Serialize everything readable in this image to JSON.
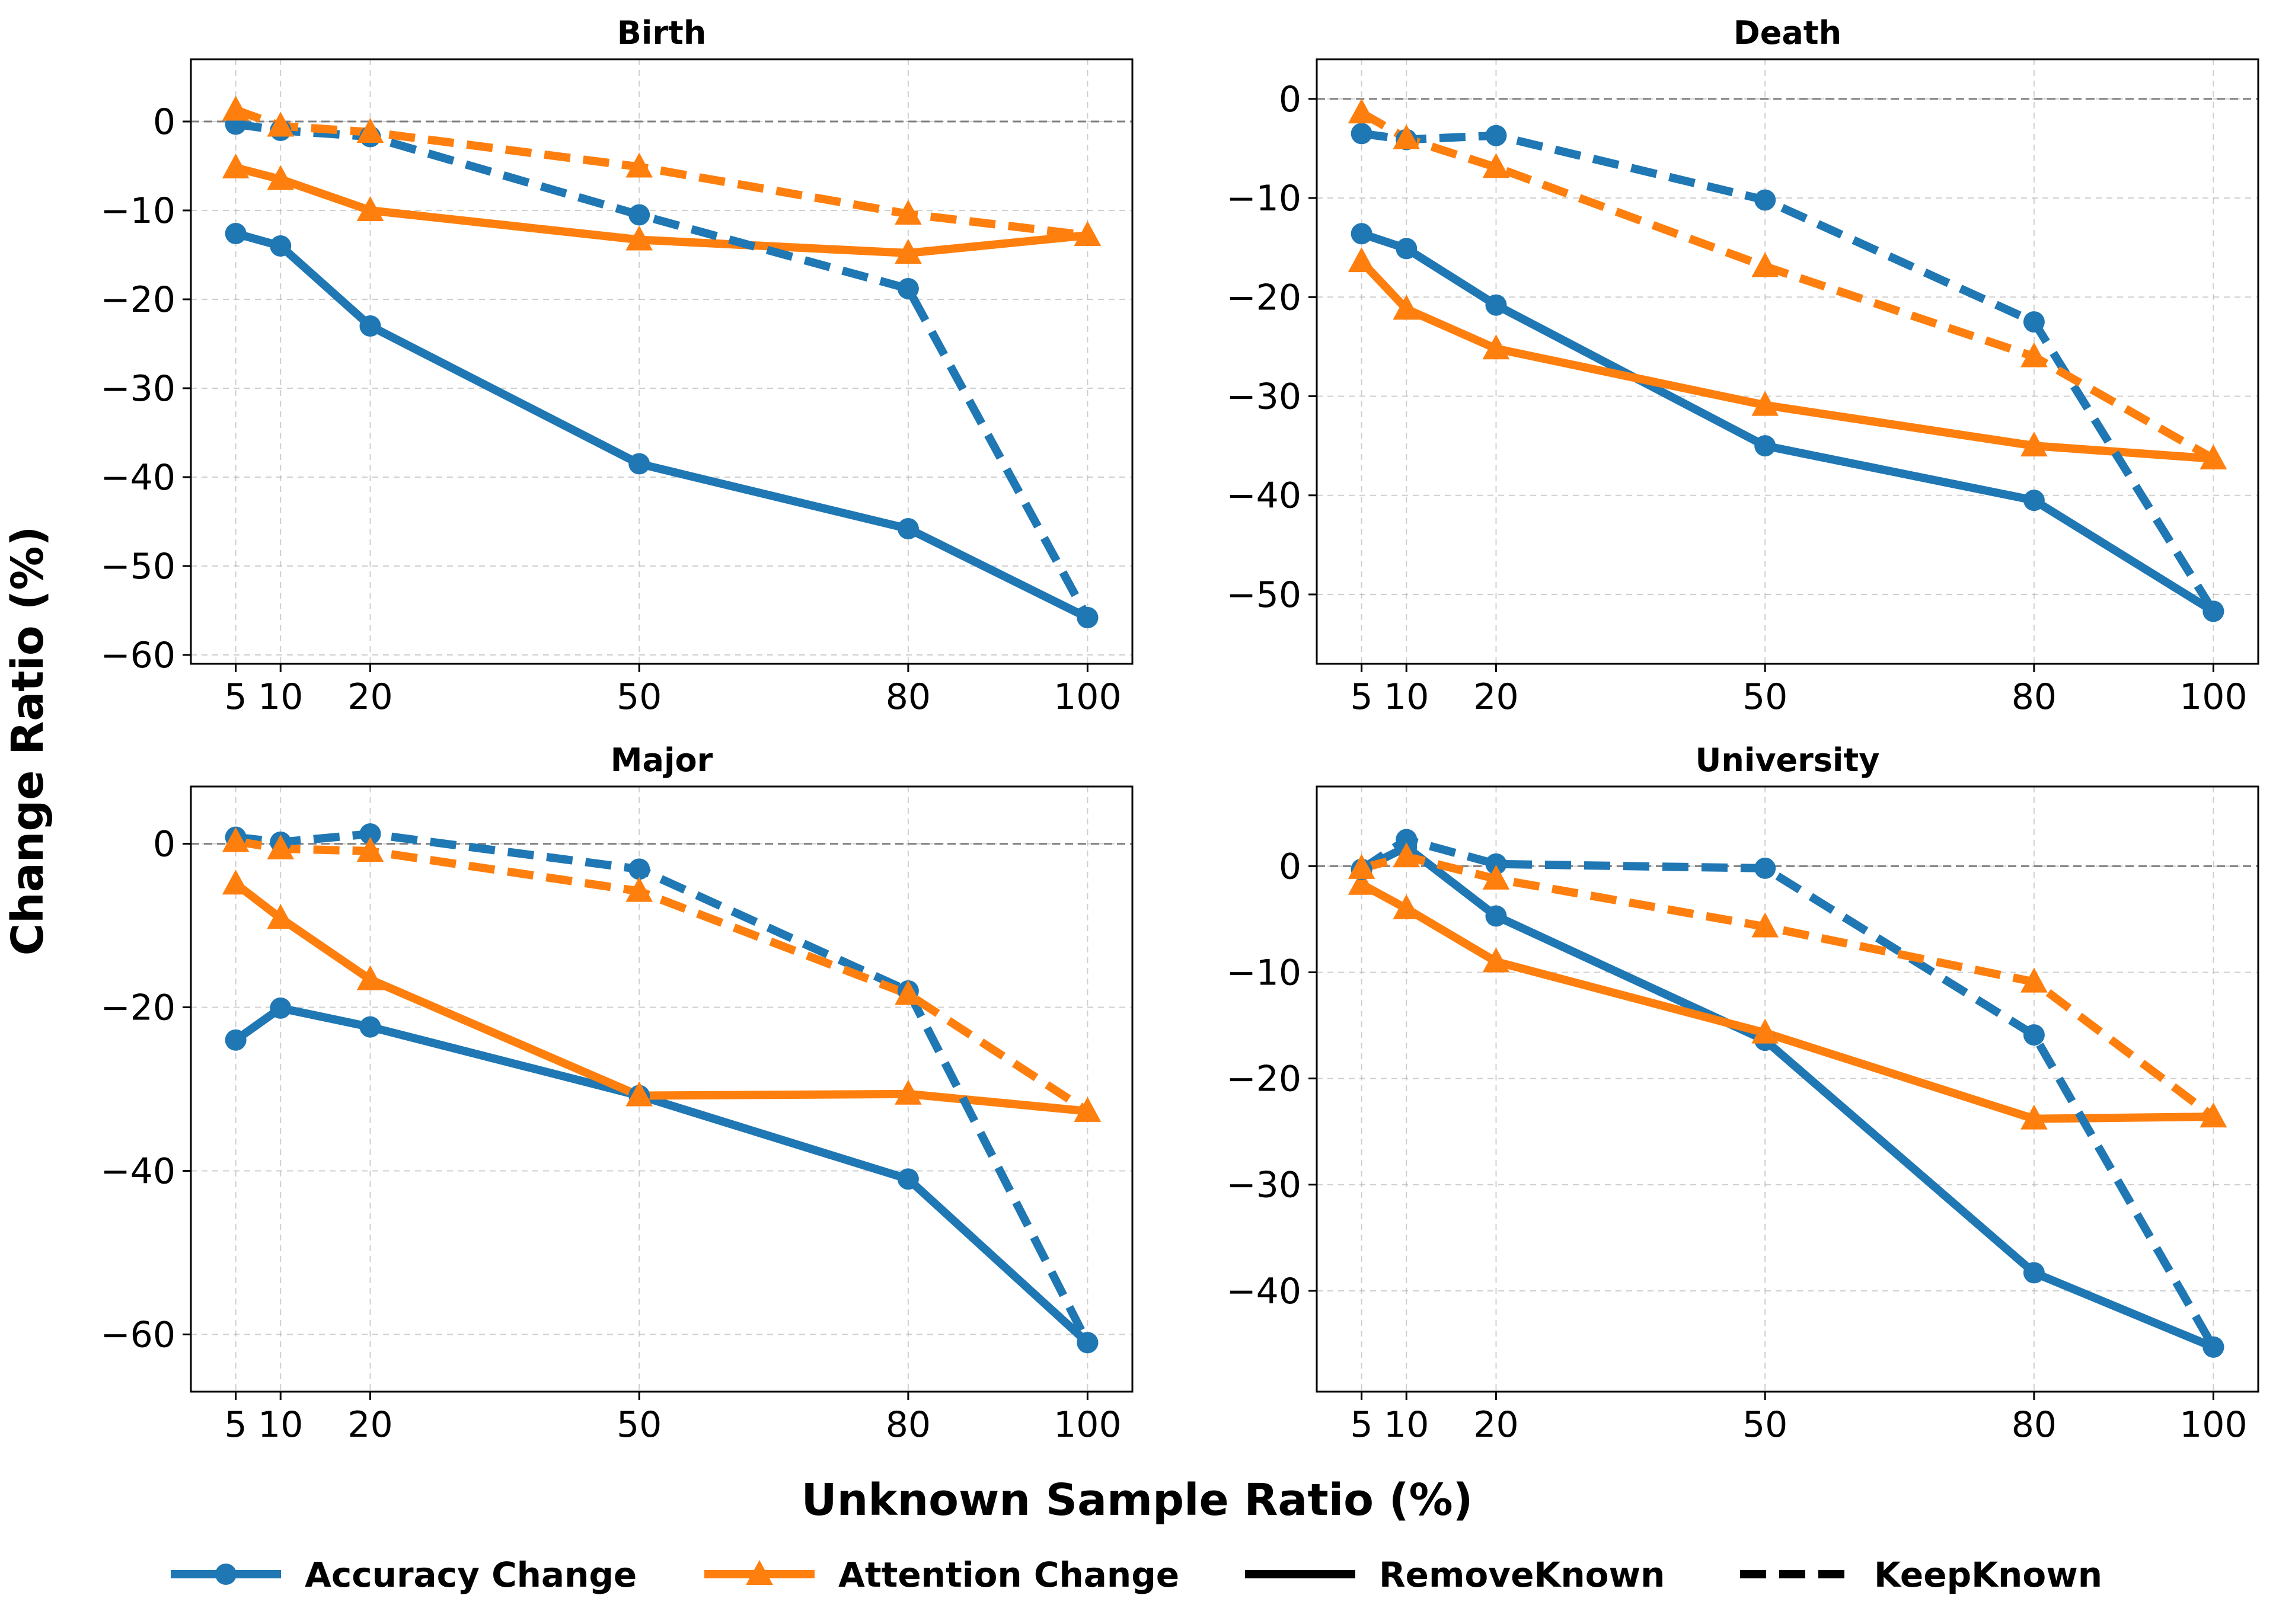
{
  "figure": {
    "xlabel": "Unknown Sample Ratio (%)",
    "ylabel": "Change Ratio (%)",
    "legend": [
      {
        "label": "Accuracy Change",
        "kind": "marker",
        "color": "#1f77b4",
        "marker": "circle"
      },
      {
        "label": "Attention Change",
        "kind": "marker",
        "color": "#ff7f0e",
        "marker": "triangle"
      },
      {
        "label": "RemoveKnown",
        "kind": "solid",
        "color": "#000000"
      },
      {
        "label": "KeepKnown",
        "kind": "dashed",
        "color": "#000000"
      }
    ],
    "legend_position": "bottom-center"
  },
  "chart_data": [
    {
      "type": "line",
      "title": "Birth",
      "x": [
        5,
        10,
        20,
        50,
        80,
        100
      ],
      "xticks": [
        5,
        10,
        20,
        50,
        80,
        100
      ],
      "xlim": [
        0,
        105
      ],
      "yticks": [
        0,
        -10,
        -20,
        -30,
        -40,
        -50,
        -60
      ],
      "ylim": [
        -61,
        7
      ],
      "grid": true,
      "series": [
        {
          "name": "Accuracy Change",
          "condition": "RemoveKnown",
          "color": "#1f77b4",
          "marker": "circle",
          "linestyle": "solid",
          "values": [
            -12.6,
            -14.0,
            -23.0,
            -38.5,
            -45.8,
            -55.8
          ]
        },
        {
          "name": "Attention Change",
          "condition": "RemoveKnown",
          "color": "#ff7f0e",
          "marker": "triangle",
          "linestyle": "solid",
          "values": [
            -5.2,
            -6.5,
            -10.0,
            -13.3,
            -14.8,
            -12.8
          ]
        },
        {
          "name": "Accuracy Change",
          "condition": "KeepKnown",
          "color": "#1f77b4",
          "marker": "circle",
          "linestyle": "dashed",
          "values": [
            -0.3,
            -1.0,
            -1.7,
            -10.5,
            -18.8,
            -55.8
          ]
        },
        {
          "name": "Attention Change",
          "condition": "KeepKnown",
          "color": "#ff7f0e",
          "marker": "triangle",
          "linestyle": "dashed",
          "values": [
            1.3,
            -0.5,
            -1.2,
            -5.1,
            -10.4,
            -12.8
          ]
        }
      ]
    },
    {
      "type": "line",
      "title": "Death",
      "x": [
        5,
        10,
        20,
        50,
        80,
        100
      ],
      "xticks": [
        5,
        10,
        20,
        50,
        80,
        100
      ],
      "xlim": [
        0,
        105
      ],
      "yticks": [
        0,
        -10,
        -20,
        -30,
        -40,
        -50
      ],
      "ylim": [
        -57,
        4
      ],
      "grid": true,
      "series": [
        {
          "name": "Accuracy Change",
          "condition": "RemoveKnown",
          "color": "#1f77b4",
          "marker": "circle",
          "linestyle": "solid",
          "values": [
            -13.6,
            -15.1,
            -20.8,
            -35.0,
            -40.5,
            -51.7
          ]
        },
        {
          "name": "Attention Change",
          "condition": "RemoveKnown",
          "color": "#ff7f0e",
          "marker": "triangle",
          "linestyle": "solid",
          "values": [
            -16.4,
            -21.2,
            -25.2,
            -30.9,
            -35.0,
            -36.3
          ]
        },
        {
          "name": "Accuracy Change",
          "condition": "KeepKnown",
          "color": "#1f77b4",
          "marker": "circle",
          "linestyle": "dashed",
          "values": [
            -3.5,
            -4.1,
            -3.7,
            -10.2,
            -22.5,
            -51.7
          ]
        },
        {
          "name": "Attention Change",
          "condition": "KeepKnown",
          "color": "#ff7f0e",
          "marker": "triangle",
          "linestyle": "dashed",
          "values": [
            -1.4,
            -4.0,
            -6.9,
            -16.9,
            -26.0,
            -36.3
          ]
        }
      ]
    },
    {
      "type": "line",
      "title": "Major",
      "x": [
        5,
        10,
        20,
        50,
        80,
        100
      ],
      "xticks": [
        5,
        10,
        20,
        50,
        80,
        100
      ],
      "xlim": [
        0,
        105
      ],
      "yticks": [
        0,
        -20,
        -40,
        -60
      ],
      "ylim": [
        -67,
        7
      ],
      "grid": true,
      "series": [
        {
          "name": "Accuracy Change",
          "condition": "RemoveKnown",
          "color": "#1f77b4",
          "marker": "circle",
          "linestyle": "solid",
          "values": [
            -24.0,
            -20.1,
            -22.4,
            -30.8,
            -41.0,
            -61.0
          ]
        },
        {
          "name": "Attention Change",
          "condition": "RemoveKnown",
          "color": "#ff7f0e",
          "marker": "triangle",
          "linestyle": "solid",
          "values": [
            -4.9,
            -9.1,
            -16.6,
            -30.8,
            -30.6,
            -32.7
          ]
        },
        {
          "name": "Accuracy Change",
          "condition": "KeepKnown",
          "color": "#1f77b4",
          "marker": "circle",
          "linestyle": "dashed",
          "values": [
            0.8,
            0.2,
            1.2,
            -3.1,
            -18.0,
            -61.0
          ]
        },
        {
          "name": "Attention Change",
          "condition": "KeepKnown",
          "color": "#ff7f0e",
          "marker": "triangle",
          "linestyle": "dashed",
          "values": [
            0.3,
            -0.6,
            -0.9,
            -5.8,
            -18.4,
            -32.7
          ]
        }
      ]
    },
    {
      "type": "line",
      "title": "University",
      "x": [
        5,
        10,
        20,
        50,
        80,
        100
      ],
      "xticks": [
        5,
        10,
        20,
        50,
        80,
        100
      ],
      "xlim": [
        0,
        105
      ],
      "yticks": [
        0,
        -10,
        -20,
        -30,
        -40
      ],
      "ylim": [
        -49.5,
        7.5
      ],
      "grid": true,
      "series": [
        {
          "name": "Accuracy Change",
          "condition": "RemoveKnown",
          "color": "#1f77b4",
          "marker": "circle",
          "linestyle": "solid",
          "values": [
            -0.3,
            1.8,
            -4.7,
            -16.4,
            -38.3,
            -45.3
          ]
        },
        {
          "name": "Attention Change",
          "condition": "RemoveKnown",
          "color": "#ff7f0e",
          "marker": "triangle",
          "linestyle": "solid",
          "values": [
            -1.7,
            -4.0,
            -9.0,
            -15.7,
            -23.8,
            -23.6
          ]
        },
        {
          "name": "Accuracy Change",
          "condition": "KeepKnown",
          "color": "#1f77b4",
          "marker": "circle",
          "linestyle": "dashed",
          "values": [
            -0.3,
            2.5,
            0.2,
            -0.2,
            -15.9,
            -45.3
          ]
        },
        {
          "name": "Attention Change",
          "condition": "KeepKnown",
          "color": "#ff7f0e",
          "marker": "triangle",
          "linestyle": "dashed",
          "values": [
            -0.2,
            0.9,
            -1.2,
            -5.7,
            -10.9,
            -23.6
          ]
        }
      ]
    }
  ]
}
